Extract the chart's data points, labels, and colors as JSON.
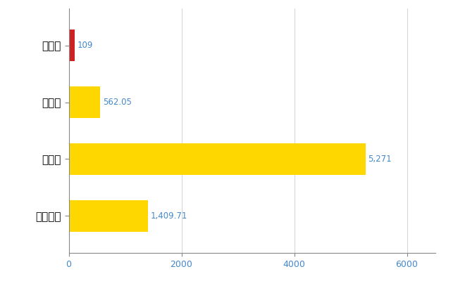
{
  "categories": [
    "全国平均",
    "県最大",
    "県平均",
    "安堵町"
  ],
  "values": [
    1409.71,
    5271,
    562.05,
    109
  ],
  "bar_colors": [
    "#FFD700",
    "#FFD700",
    "#FFD700",
    "#CC2222"
  ],
  "value_labels": [
    "1,409.71",
    "5,271",
    "562.05",
    "109"
  ],
  "xlim": [
    0,
    6500
  ],
  "xticks": [
    0,
    2000,
    4000,
    6000
  ],
  "xtick_labels": [
    "0",
    "2000",
    "4000",
    "6000"
  ],
  "background_color": "#FFFFFF",
  "grid_color": "#CCCCCC",
  "label_color": "#4488CC",
  "bar_height": 0.55,
  "figsize": [
    6.5,
    4.0
  ],
  "dpi": 100
}
